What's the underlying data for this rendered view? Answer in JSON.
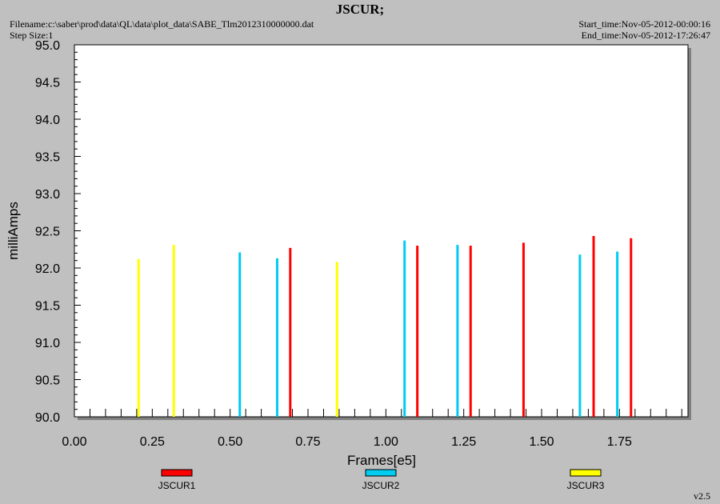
{
  "header": {
    "title": "JSCUR;",
    "filename": "Filename:c:\\saber\\prod\\data\\QL\\data\\plot_data\\SABE_Tlm2012310000000.dat",
    "step_size": "Step Size:1",
    "start_time": "Start_time:Nov-05-2012-00:00:16",
    "end_time": "End_time:Nov-05-2012-17:26:47"
  },
  "footer": {
    "version": "v2.5"
  },
  "colors": {
    "JSCUR1": "#ff0000",
    "JSCUR2": "#00ccf0",
    "JSCUR3": "#ffff00",
    "plot_bg": "#ffffff",
    "frame": "#808080"
  },
  "chart_data": {
    "type": "bar",
    "title": "JSCUR;",
    "xlabel": "Frames[e5]",
    "ylabel": "milliAmps",
    "xlim": [
      0.0,
      1.97
    ],
    "ylim": [
      90.0,
      95.0
    ],
    "xticks": [
      "0.00",
      "0.25",
      "0.50",
      "0.75",
      "1.00",
      "1.25",
      "1.50",
      "1.75"
    ],
    "yticks": [
      "90.0",
      "90.5",
      "91.0",
      "91.5",
      "92.0",
      "92.5",
      "93.0",
      "93.5",
      "94.0",
      "94.5",
      "95.0"
    ],
    "legend_position": "bottom",
    "series": [
      {
        "name": "JSCUR1",
        "color": "#ff0000",
        "points": [
          {
            "x": 0.693,
            "y": 92.27
          },
          {
            "x": 1.101,
            "y": 92.3
          },
          {
            "x": 1.272,
            "y": 92.3
          },
          {
            "x": 1.442,
            "y": 92.34
          },
          {
            "x": 1.667,
            "y": 92.43
          },
          {
            "x": 1.787,
            "y": 92.4
          }
        ]
      },
      {
        "name": "JSCUR2",
        "color": "#00ccf0",
        "points": [
          {
            "x": 0.531,
            "y": 92.21
          },
          {
            "x": 0.651,
            "y": 92.13
          },
          {
            "x": 1.06,
            "y": 92.37
          },
          {
            "x": 1.23,
            "y": 92.31
          },
          {
            "x": 1.623,
            "y": 92.18
          },
          {
            "x": 1.743,
            "y": 92.22
          }
        ]
      },
      {
        "name": "JSCUR3",
        "color": "#ffff00",
        "points": [
          {
            "x": 0.206,
            "y": 92.12
          },
          {
            "x": 0.319,
            "y": 92.31
          },
          {
            "x": 0.843,
            "y": 92.08
          }
        ]
      }
    ]
  }
}
